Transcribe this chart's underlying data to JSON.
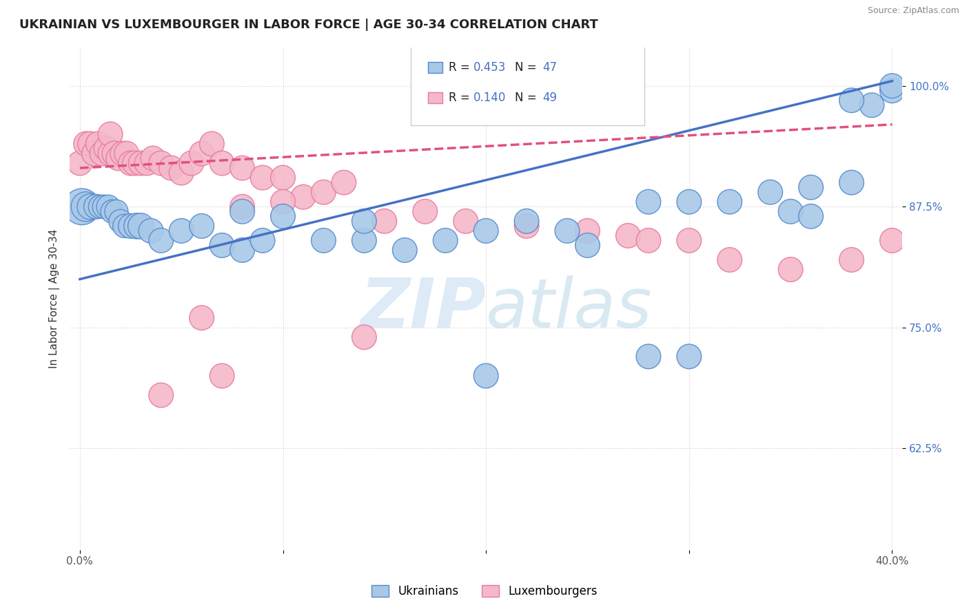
{
  "title": "UKRAINIAN VS LUXEMBOURGER IN LABOR FORCE | AGE 30-34 CORRELATION CHART",
  "source": "Source: ZipAtlas.com",
  "ylabel": "In Labor Force | Age 30-34",
  "xlim": [
    -0.005,
    0.405
  ],
  "ylim": [
    0.52,
    1.04
  ],
  "yticks": [
    0.625,
    0.75,
    0.875,
    1.0
  ],
  "ytick_labels": [
    "62.5%",
    "75.0%",
    "87.5%",
    "100.0%"
  ],
  "xticks": [
    0.0,
    0.1,
    0.2,
    0.3,
    0.4
  ],
  "xtick_labels": [
    "0.0%",
    "",
    "",
    "",
    "40.0%"
  ],
  "legend_R_blue": "R = 0.453",
  "legend_N_blue": "N = 47",
  "legend_R_pink": "R = 0.140",
  "legend_N_pink": "N = 49",
  "blue_color": "#a8c8e8",
  "pink_color": "#f4b8c8",
  "blue_edge_color": "#5588cc",
  "pink_edge_color": "#e878a0",
  "blue_line_color": "#4472c4",
  "pink_line_color": "#e05080",
  "watermark_zip": "ZIP",
  "watermark_atlas": "atlas",
  "ukrainians_x": [
    0.001,
    0.003,
    0.005,
    0.008,
    0.01,
    0.012,
    0.014,
    0.016,
    0.018,
    0.02,
    0.022,
    0.025,
    0.028,
    0.03,
    0.035,
    0.04,
    0.05,
    0.06,
    0.07,
    0.08,
    0.09,
    0.1,
    0.12,
    0.14,
    0.16,
    0.18,
    0.2,
    0.22,
    0.24,
    0.25,
    0.28,
    0.3,
    0.32,
    0.34,
    0.36,
    0.38,
    0.39,
    0.4,
    0.4,
    0.38,
    0.35,
    0.36,
    0.08,
    0.14,
    0.2,
    0.28,
    0.3
  ],
  "ukrainians_y": [
    0.875,
    0.875,
    0.875,
    0.875,
    0.875,
    0.875,
    0.875,
    0.87,
    0.87,
    0.86,
    0.855,
    0.855,
    0.855,
    0.855,
    0.85,
    0.84,
    0.85,
    0.855,
    0.835,
    0.83,
    0.84,
    0.865,
    0.84,
    0.84,
    0.83,
    0.84,
    0.85,
    0.86,
    0.85,
    0.835,
    0.88,
    0.88,
    0.88,
    0.89,
    0.895,
    0.9,
    0.98,
    0.995,
    1.0,
    0.985,
    0.87,
    0.865,
    0.87,
    0.86,
    0.7,
    0.72,
    0.72
  ],
  "ukrainians_size": [
    120,
    80,
    60,
    55,
    50,
    50,
    50,
    50,
    50,
    50,
    50,
    55,
    60,
    60,
    55,
    55,
    55,
    55,
    55,
    55,
    55,
    55,
    55,
    55,
    55,
    55,
    55,
    55,
    55,
    55,
    55,
    55,
    55,
    55,
    55,
    55,
    55,
    55,
    55,
    55,
    55,
    55,
    55,
    55,
    55,
    55,
    55
  ],
  "luxembourgers_x": [
    0.0,
    0.003,
    0.005,
    0.007,
    0.009,
    0.011,
    0.013,
    0.015,
    0.015,
    0.017,
    0.019,
    0.021,
    0.023,
    0.025,
    0.027,
    0.03,
    0.033,
    0.036,
    0.04,
    0.045,
    0.05,
    0.055,
    0.06,
    0.065,
    0.07,
    0.08,
    0.09,
    0.1,
    0.11,
    0.12,
    0.13,
    0.08,
    0.1,
    0.15,
    0.17,
    0.19,
    0.22,
    0.25,
    0.27,
    0.28,
    0.3,
    0.32,
    0.35,
    0.38,
    0.4,
    0.14,
    0.06,
    0.07,
    0.04
  ],
  "luxembourgers_y": [
    0.92,
    0.94,
    0.94,
    0.93,
    0.94,
    0.93,
    0.935,
    0.93,
    0.95,
    0.93,
    0.925,
    0.93,
    0.93,
    0.92,
    0.92,
    0.92,
    0.92,
    0.925,
    0.92,
    0.915,
    0.91,
    0.92,
    0.93,
    0.94,
    0.92,
    0.915,
    0.905,
    0.905,
    0.885,
    0.89,
    0.9,
    0.875,
    0.88,
    0.86,
    0.87,
    0.86,
    0.855,
    0.85,
    0.845,
    0.84,
    0.84,
    0.82,
    0.81,
    0.82,
    0.84,
    0.74,
    0.76,
    0.7,
    0.68
  ],
  "luxembourgers_size": [
    55,
    55,
    55,
    55,
    55,
    55,
    55,
    55,
    55,
    55,
    55,
    55,
    55,
    55,
    55,
    55,
    55,
    55,
    55,
    55,
    55,
    55,
    55,
    55,
    55,
    55,
    55,
    55,
    55,
    55,
    55,
    55,
    55,
    55,
    55,
    55,
    55,
    55,
    55,
    55,
    55,
    55,
    55,
    55,
    55,
    55,
    55,
    55,
    55
  ],
  "blue_trendline_x0": 0.0,
  "blue_trendline_y0": 0.8,
  "blue_trendline_x1": 0.4,
  "blue_trendline_y1": 1.005,
  "pink_trendline_x0": 0.0,
  "pink_trendline_y0": 0.915,
  "pink_trendline_x1": 0.4,
  "pink_trendline_y1": 0.96
}
